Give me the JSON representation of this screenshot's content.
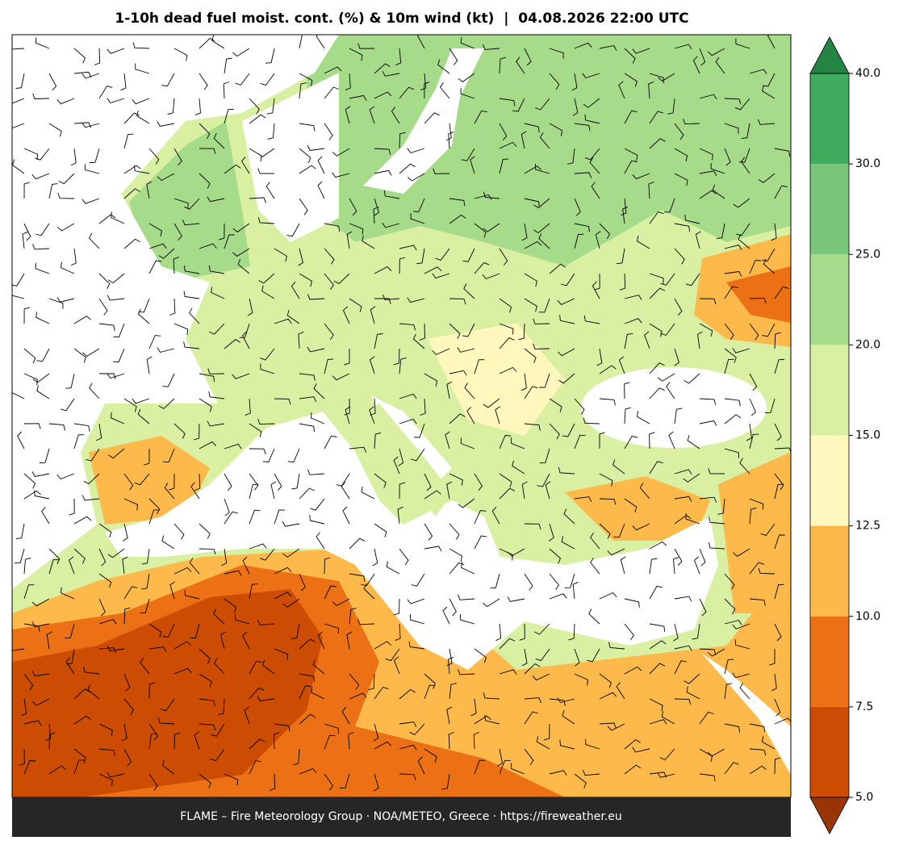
{
  "title": "1-10h dead fuel moist. cont. (%) & 10m wind (kt)  |  04.08.2026 22:00 UTC",
  "colorbar": {
    "ticks": [
      {
        "value": 5,
        "label": "5.0"
      },
      {
        "value": 7.5,
        "label": "7.5"
      },
      {
        "value": 10,
        "label": "10.0"
      },
      {
        "value": 12.5,
        "label": "12.5"
      },
      {
        "value": 15,
        "label": "15.0"
      },
      {
        "value": 20,
        "label": "20.0"
      },
      {
        "value": 25,
        "label": "25.0"
      },
      {
        "value": 30,
        "label": "30.0"
      },
      {
        "value": 40,
        "label": "40.0"
      }
    ],
    "colors": [
      "#cc4c02",
      "#ec7014",
      "#fdb94a",
      "#fff7bc",
      "#d9f0a3",
      "#a6db8a",
      "#78c679",
      "#41ab5d"
    ],
    "under_color": "#993404",
    "over_color": "#238443"
  },
  "footer": "FLAME – Fire Meteorology Group · NOA/METEO, Greece · https://fireweather.eu"
}
